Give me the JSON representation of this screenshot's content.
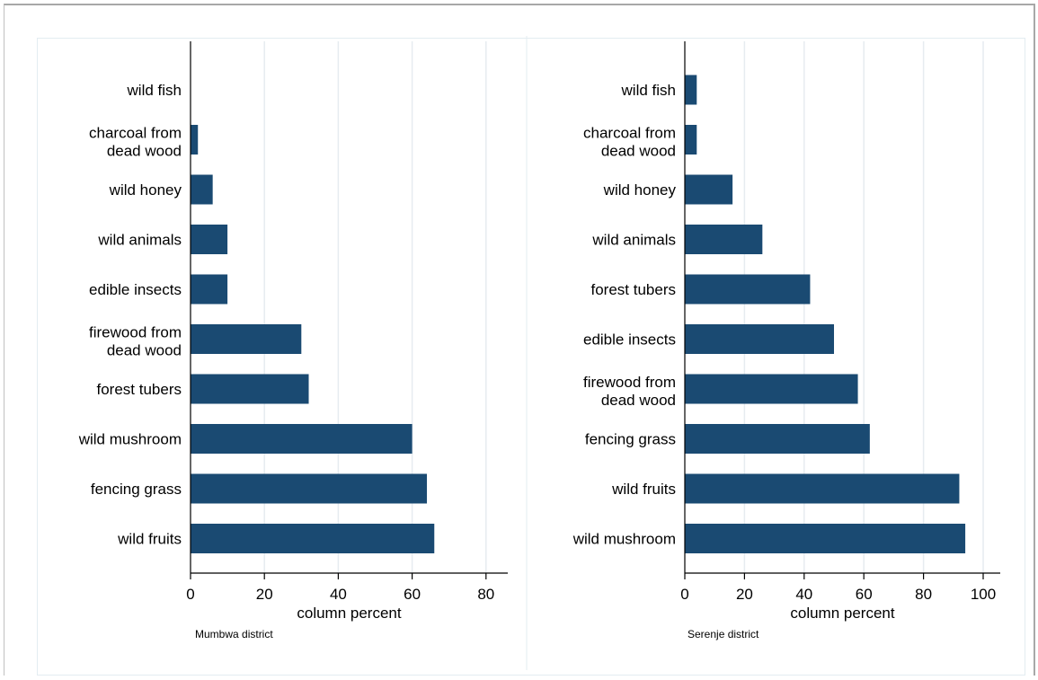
{
  "chart_data": [
    {
      "type": "bar",
      "orientation": "horizontal",
      "note": "Mumbwa district",
      "xlabel": "column percent",
      "xlim": [
        0,
        85
      ],
      "xticks": [
        0,
        20,
        40,
        60,
        80
      ],
      "grid": true,
      "bar_color": "#1a4a72",
      "categories": [
        "wild fish",
        "charcoal from dead wood",
        "wild honey",
        "wild animals",
        "edible insects",
        "firewood from dead wood",
        "forest tubers",
        "wild mushroom",
        "fencing grass",
        "wild fruits"
      ],
      "category_lines": [
        [
          "wild fish"
        ],
        [
          "charcoal from",
          "dead wood"
        ],
        [
          "wild honey"
        ],
        [
          "wild animals"
        ],
        [
          "edible insects"
        ],
        [
          "firewood from",
          "dead wood"
        ],
        [
          "forest tubers"
        ],
        [
          "wild mushroom"
        ],
        [
          "fencing grass"
        ],
        [
          "wild fruits"
        ]
      ],
      "values": [
        0,
        2,
        6,
        10,
        10,
        30,
        32,
        60,
        64,
        66
      ]
    },
    {
      "type": "bar",
      "orientation": "horizontal",
      "note": "Serenje district",
      "xlabel": "column percent",
      "xlim": [
        0,
        106
      ],
      "xticks": [
        0,
        20,
        40,
        60,
        80,
        100
      ],
      "grid": true,
      "bar_color": "#1a4a72",
      "categories": [
        "wild fish",
        "charcoal from dead wood",
        "wild honey",
        "wild animals",
        "forest tubers",
        "edible insects",
        "firewood from dead wood",
        "fencing grass",
        "wild fruits",
        "wild mushroom"
      ],
      "category_lines": [
        [
          "wild fish"
        ],
        [
          "charcoal from",
          "dead wood"
        ],
        [
          "wild honey"
        ],
        [
          "wild animals"
        ],
        [
          "forest tubers"
        ],
        [
          "edible insects"
        ],
        [
          "firewood from",
          "dead wood"
        ],
        [
          "fencing grass"
        ],
        [
          "wild fruits"
        ],
        [
          "wild mushroom"
        ]
      ],
      "values": [
        4,
        4,
        16,
        26,
        42,
        50,
        58,
        62,
        92,
        94
      ]
    }
  ]
}
